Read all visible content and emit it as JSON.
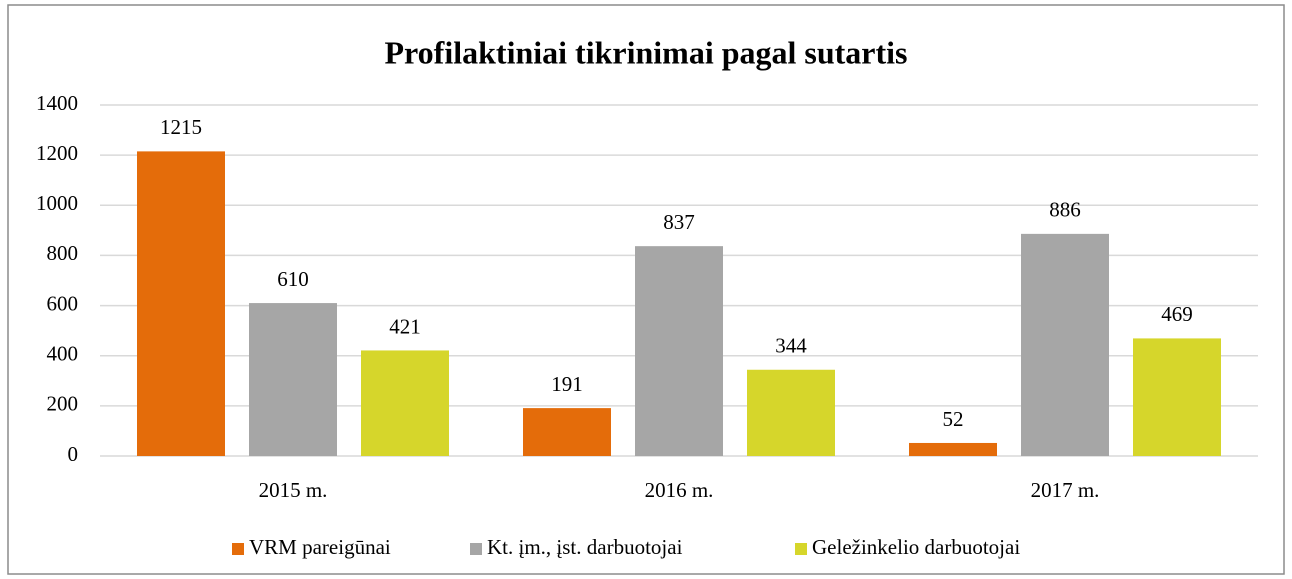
{
  "chart_data": {
    "type": "bar",
    "title": "Profilaktiniai tikrinimai pagal sutartis",
    "categories": [
      "2015 m.",
      "2016 m.",
      "2017 m."
    ],
    "series": [
      {
        "name": "VRM pareigūnai",
        "color": "#e46c0a",
        "values": [
          1215,
          191,
          52
        ]
      },
      {
        "name": "Kt. įm., įst. darbuotojai",
        "color": "#a6a6a6",
        "values": [
          610,
          837,
          886
        ]
      },
      {
        "name": "Geležinkelio darbuotojai",
        "color": "#d6d62b",
        "values": [
          421,
          344,
          469
        ]
      }
    ],
    "ylim": [
      0,
      1400
    ],
    "yticks": [
      0,
      200,
      400,
      600,
      800,
      1000,
      1200,
      1400
    ],
    "grid": true,
    "legend": "bottom"
  }
}
